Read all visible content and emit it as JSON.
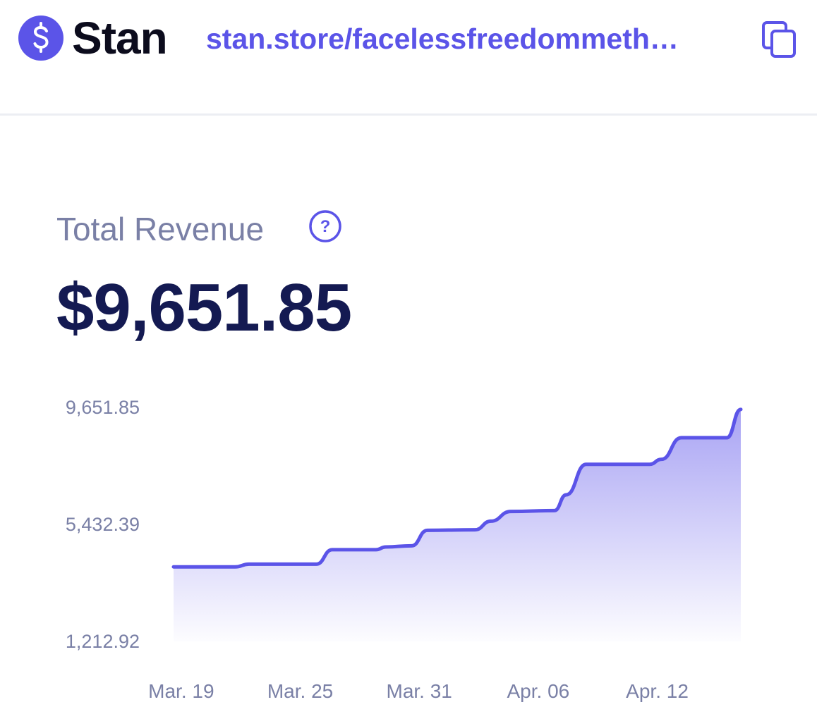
{
  "app": {
    "name": "Stan"
  },
  "header": {
    "store_url": "stan.store/facelessfreedommeth…",
    "copy_icon": "copy-icon",
    "logo_icon": "dollar-icon"
  },
  "metric": {
    "label": "Total Revenue",
    "help_icon": "question-mark-icon",
    "value": "$9,651.85"
  },
  "colors": {
    "accent": "#5b54e8",
    "value_text": "#141a52",
    "muted_text": "#7a80a6"
  },
  "chart_data": {
    "type": "area",
    "y_ticks": [
      "9,651.85",
      "5,432.39",
      "1,212.92"
    ],
    "ylim": [
      1212.92,
      9651.85
    ],
    "x_ticks": [
      {
        "label": "Mar. 19",
        "day": 1
      },
      {
        "label": "Mar. 25",
        "day": 7
      },
      {
        "label": "Mar. 31",
        "day": 13
      },
      {
        "label": "Apr. 06",
        "day": 19
      },
      {
        "label": "Apr. 12",
        "day": 25
      }
    ],
    "series": [
      {
        "values": [
          [
            0.4,
            3900
          ],
          [
            3.5,
            3900
          ],
          [
            4.2,
            4000
          ],
          [
            7.6,
            4000
          ],
          [
            8.4,
            4520
          ],
          [
            10.6,
            4520
          ],
          [
            11.1,
            4620
          ],
          [
            12.4,
            4660
          ],
          [
            13.2,
            5220
          ],
          [
            15.6,
            5240
          ],
          [
            16.4,
            5550
          ],
          [
            17.4,
            5900
          ],
          [
            19.6,
            5930
          ],
          [
            20.2,
            6500
          ],
          [
            21.2,
            7600
          ],
          [
            24.4,
            7600
          ],
          [
            25.0,
            7780
          ],
          [
            26.0,
            8560
          ],
          [
            28.3,
            8560
          ],
          [
            29.0,
            9580
          ]
        ]
      }
    ]
  }
}
